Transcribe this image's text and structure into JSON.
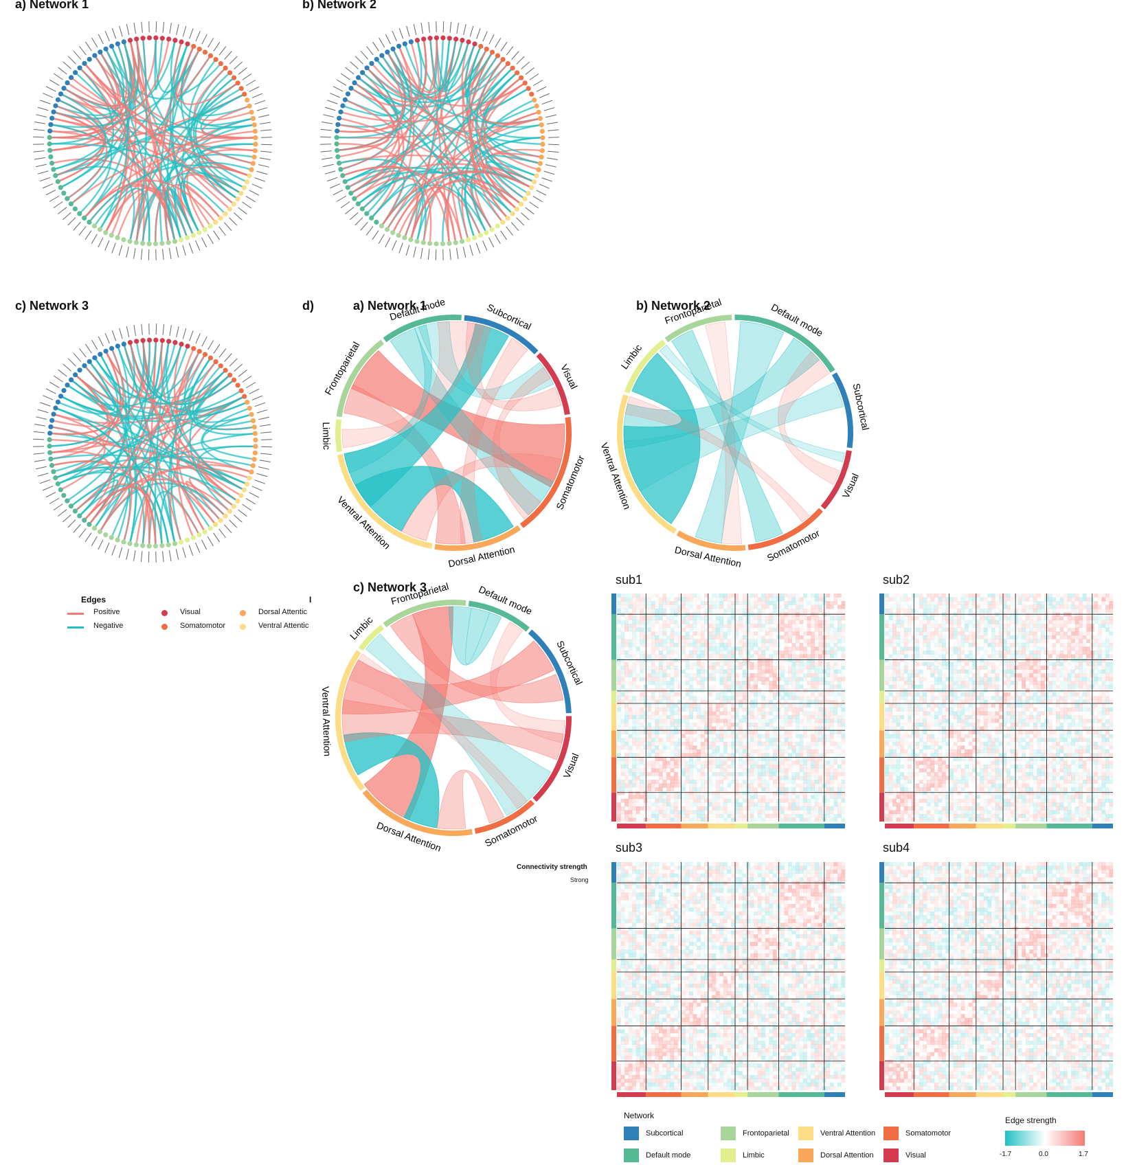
{
  "panels": {
    "a_title": "a) Network 1",
    "b_title": "b) Network 2",
    "c_title": "c) Network 3",
    "d_label": "d)",
    "da_title": "a) Network 1",
    "db_title": "b) Network 2",
    "dc_title": "c) Network 3"
  },
  "network_colors": {
    "Subcortical": "#2f7fb8",
    "Default mode": "#55b996",
    "Frontoparietal": "#a8d69a",
    "Limbic": "#e3ef8f",
    "Ventral Attention": "#fddc86",
    "Dorsal Attention": "#f9a85a",
    "Somatomotor": "#f06c43",
    "Visual": "#d33b4e"
  },
  "edge_colors": {
    "positive": "#f47a74",
    "negative": "#22c0c4"
  },
  "edges_legend": {
    "title": "Edges",
    "positive": "Positive",
    "negative": "Negative",
    "nodes_head": "I",
    "nodes": [
      "Visual",
      "Somatomotor",
      "Dorsal Attentic",
      "Ventral Attentic"
    ]
  },
  "chord_labels": {
    "n1": [
      "Default mode",
      "Subcortical",
      "Visual",
      "Somatomotor",
      "Dorsal Attention",
      "Ventral Attention",
      "Limbic",
      "Frontoparietal"
    ],
    "n2": [
      "Frontoparietal",
      "Default mode",
      "Subcortical",
      "Visual",
      "Somatomotor",
      "Dorsal Attention",
      "Ventral Attention",
      "Limbic"
    ],
    "n3": [
      "Frontoparietal",
      "Default mode",
      "Subcortical",
      "Visual",
      "Somatomotor",
      "Dorsal Attention",
      "Ventral Attention",
      "Limbic"
    ]
  },
  "connectivity": {
    "title": "Connectivity strength",
    "strong": "Strong"
  },
  "matrices": {
    "sub1": "sub1",
    "sub2": "sub2",
    "sub3": "sub3",
    "sub4": "sub4"
  },
  "network_legend": {
    "title": "Network",
    "items": [
      "Subcortical",
      "Default mode",
      "Frontoparietal",
      "Limbic",
      "Ventral Attention",
      "Dorsal Attention",
      "Somatomotor",
      "Visual"
    ]
  },
  "edge_strength": {
    "title": "Edge strength",
    "min": "-1.7",
    "mid": "0.0",
    "max": "1.7"
  }
}
